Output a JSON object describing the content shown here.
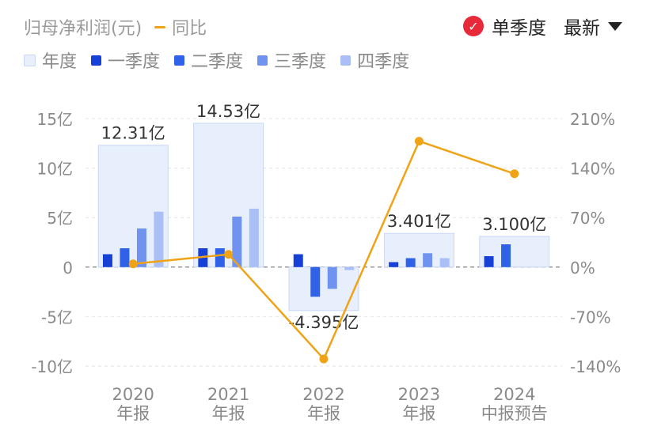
{
  "header": {
    "metric_title": "归母净利润(元)",
    "yoy_label": "同比",
    "single_quarter_label": "单季度",
    "latest_label": "最新"
  },
  "legend": {
    "items": [
      {
        "label": "年度",
        "color": "#e8effc"
      },
      {
        "label": "一季度",
        "color": "#1640d6"
      },
      {
        "label": "二季度",
        "color": "#2f62e6"
      },
      {
        "label": "三季度",
        "color": "#6f93ee"
      },
      {
        "label": "四季度",
        "color": "#a9bff6"
      }
    ]
  },
  "colors": {
    "annual_fill": "#e8effc",
    "annual_stroke": "#c9d7f6",
    "q1": "#1640d6",
    "q2": "#2f62e6",
    "q3": "#6f93ee",
    "q4": "#a9bff6",
    "yoy_line": "#f0a316",
    "grid": "#e6e6e6",
    "zero_line": "#9a9a9a",
    "axis_text": "#8a8a8a"
  },
  "chart_data": {
    "type": "bar",
    "categories": [
      {
        "year": "2020",
        "label": "年报"
      },
      {
        "year": "2021",
        "label": "年报"
      },
      {
        "year": "2022",
        "label": "年报"
      },
      {
        "year": "2023",
        "label": "年报"
      },
      {
        "year": "2024",
        "label": "中报预告"
      }
    ],
    "annual": {
      "values": [
        12.31,
        14.53,
        -4.395,
        3.401,
        3.1
      ],
      "labels": [
        "12.31亿",
        "14.53亿",
        "-4.395亿",
        "3.401亿",
        "3.100亿"
      ]
    },
    "quarters": [
      [
        1.3,
        1.9,
        3.9,
        5.6
      ],
      [
        1.9,
        1.9,
        5.1,
        5.9
      ],
      [
        1.3,
        -3.0,
        -2.2,
        -0.3
      ],
      [
        0.5,
        0.9,
        1.4,
        0.9
      ],
      [
        1.1,
        2.3,
        null,
        null
      ]
    ],
    "yoy": [
      4.5,
      18.0,
      -130.0,
      178.0,
      132.0
    ],
    "y_left": {
      "min": -10,
      "max": 15,
      "ticks": [
        15,
        10,
        5,
        0,
        -5,
        -10
      ],
      "tick_labels": [
        "15亿",
        "10亿",
        "5亿",
        "0",
        "-5亿",
        "-10亿"
      ]
    },
    "y_right": {
      "min": -140,
      "max": 210,
      "ticks": [
        210,
        140,
        70,
        0,
        -70,
        -140
      ],
      "tick_labels": [
        "210%",
        "140%",
        "70%",
        "0%",
        "-70%",
        "-140%"
      ]
    }
  }
}
